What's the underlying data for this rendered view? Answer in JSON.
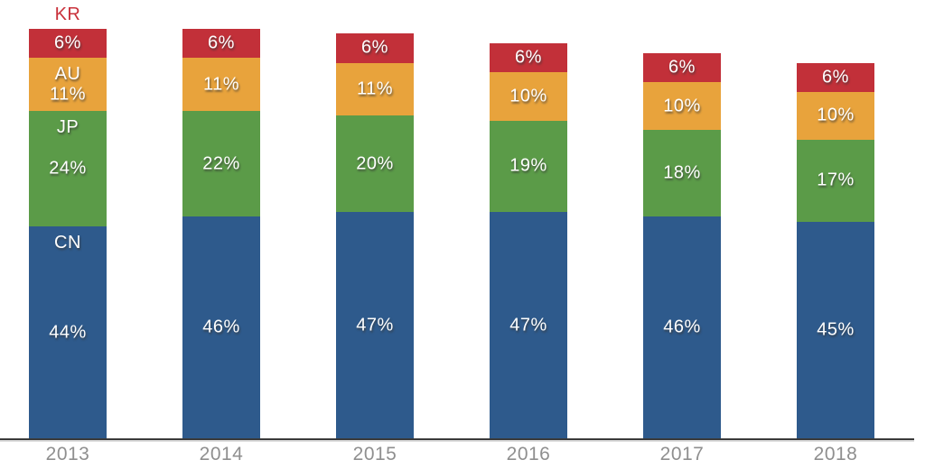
{
  "chart_data": {
    "type": "bar",
    "variant": "stacked",
    "title": "",
    "categories": [
      "2013",
      "2014",
      "2015",
      "2016",
      "2017",
      "2018"
    ],
    "series": [
      {
        "name": "CN",
        "color": "#2E5A8C",
        "label_position": "inside",
        "values": [
          44,
          46,
          47,
          47,
          46,
          45
        ]
      },
      {
        "name": "JP",
        "color": "#5B9B48",
        "label_position": "inside",
        "values": [
          24,
          22,
          20,
          19,
          18,
          17
        ]
      },
      {
        "name": "AU",
        "color": "#E8A33C",
        "label_position": "inside",
        "values": [
          11,
          11,
          11,
          10,
          10,
          10
        ]
      },
      {
        "name": "KR",
        "color": "#C23039",
        "label_position": "above",
        "values": [
          6,
          6,
          6,
          6,
          6,
          6
        ]
      }
    ],
    "value_suffix": "%",
    "series_names_shown_on_first_bar_only": true,
    "above_bar_label_color": "#C9303A",
    "legend_position": "none",
    "grid": false,
    "axis": {
      "x_labels": [
        "2013",
        "2014",
        "2015",
        "2016",
        "2017",
        "2018"
      ],
      "x_label_color": "#8f8f8f",
      "line_color": "#3a3a3a"
    }
  }
}
